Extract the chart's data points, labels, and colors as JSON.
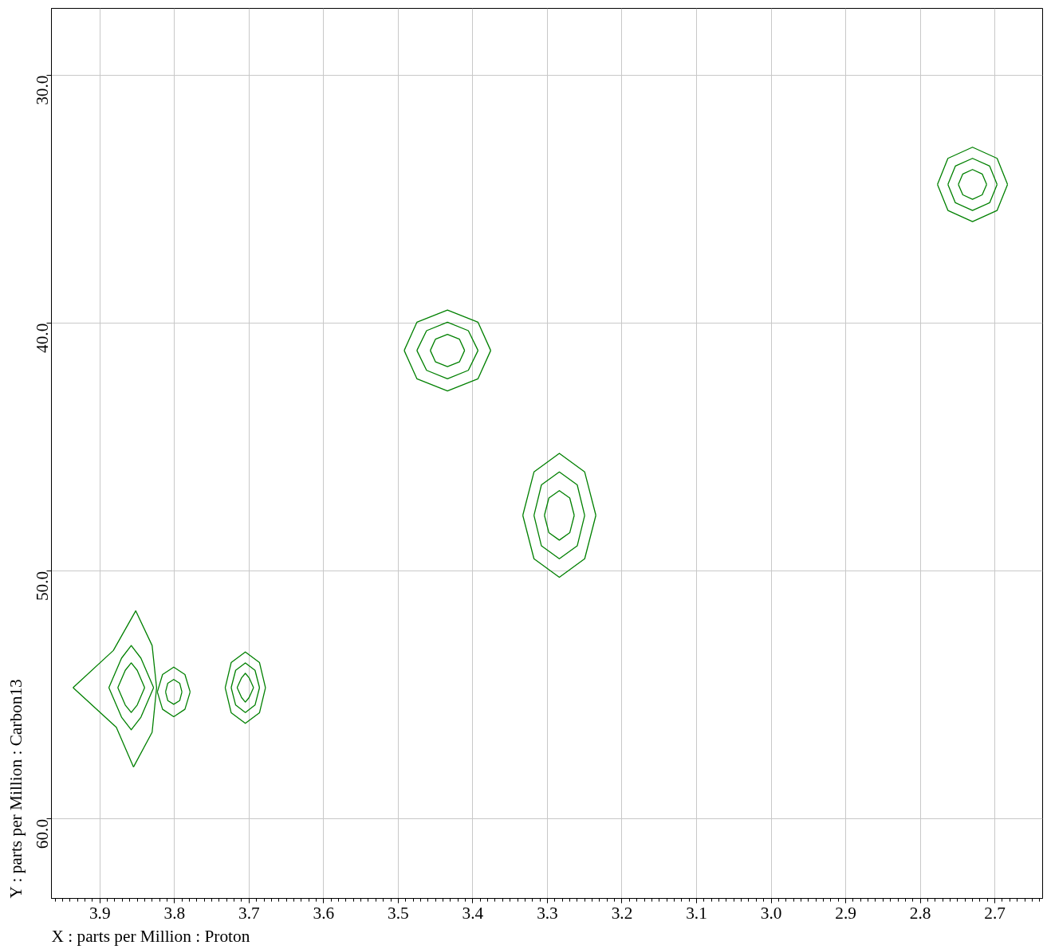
{
  "chart_data": {
    "type": "line",
    "xlabel": "X : parts per Million : Proton",
    "ylabel": "Y : parts per Million : Carbon13",
    "xlim": [
      3.965,
      2.636
    ],
    "ylim": [
      63.2,
      27.3
    ],
    "xticks": [
      {
        "value": 3.9,
        "label": "3.9"
      },
      {
        "value": 3.8,
        "label": "3.8"
      },
      {
        "value": 3.7,
        "label": "3.7"
      },
      {
        "value": 3.6,
        "label": "3.6"
      },
      {
        "value": 3.5,
        "label": "3.5"
      },
      {
        "value": 3.4,
        "label": "3.4"
      },
      {
        "value": 3.3,
        "label": "3.3"
      },
      {
        "value": 3.2,
        "label": "3.2"
      },
      {
        "value": 3.1,
        "label": "3.1"
      },
      {
        "value": 3.0,
        "label": "3.0"
      },
      {
        "value": 2.9,
        "label": "2.9"
      },
      {
        "value": 2.8,
        "label": "2.8"
      },
      {
        "value": 2.7,
        "label": "2.7"
      }
    ],
    "yticks": [
      {
        "value": 30,
        "label": "30.0"
      },
      {
        "value": 40,
        "label": "40.0"
      },
      {
        "value": 50,
        "label": "50.0"
      },
      {
        "value": 60,
        "label": "60.0"
      }
    ],
    "grid": true,
    "marker": "none",
    "line_style": "solid",
    "series": [
      {
        "color": "#008000",
        "x": [
          2.777,
          2.763,
          2.73,
          2.697,
          2.683
        ],
        "values": [
          34.4,
          35.45,
          35.9,
          35.45,
          34.4
        ]
      },
      {
        "color": "#008000",
        "x": [
          2.683,
          2.697,
          2.73,
          2.763,
          2.777
        ],
        "values": [
          34.4,
          33.35,
          32.9,
          33.35,
          34.4
        ]
      },
      {
        "color": "#008000",
        "x": [
          2.763,
          2.753,
          2.73,
          2.707,
          2.697
        ],
        "values": [
          34.4,
          35.14,
          35.45,
          35.14,
          34.4
        ]
      },
      {
        "color": "#008000",
        "x": [
          2.697,
          2.707,
          2.73,
          2.753,
          2.763
        ],
        "values": [
          34.4,
          33.66,
          33.35,
          33.66,
          34.4
        ]
      },
      {
        "color": "#008000",
        "x": [
          2.749,
          2.743,
          2.73,
          2.717,
          2.711
        ],
        "values": [
          34.4,
          34.82,
          35.0,
          34.82,
          34.4
        ]
      },
      {
        "color": "#008000",
        "x": [
          2.711,
          2.717,
          2.73,
          2.743,
          2.749
        ],
        "values": [
          34.4,
          33.98,
          33.8,
          33.98,
          34.4
        ]
      },
      {
        "color": "#008000",
        "x": [
          3.492,
          3.475,
          3.434,
          3.393,
          3.376
        ],
        "values": [
          41.1,
          42.24,
          42.73,
          42.24,
          41.1
        ]
      },
      {
        "color": "#008000",
        "x": [
          3.376,
          3.393,
          3.434,
          3.475,
          3.492
        ],
        "values": [
          41.1,
          39.96,
          39.47,
          39.96,
          41.1
        ]
      },
      {
        "color": "#008000",
        "x": [
          3.475,
          3.462,
          3.434,
          3.406,
          3.393
        ],
        "values": [
          41.1,
          41.9,
          42.24,
          41.9,
          41.1
        ]
      },
      {
        "color": "#008000",
        "x": [
          3.393,
          3.406,
          3.434,
          3.462,
          3.475
        ],
        "values": [
          41.1,
          40.3,
          39.96,
          40.3,
          41.1
        ]
      },
      {
        "color": "#008000",
        "x": [
          3.457,
          3.45,
          3.434,
          3.418,
          3.411
        ],
        "values": [
          41.1,
          41.56,
          41.75,
          41.56,
          41.1
        ]
      },
      {
        "color": "#008000",
        "x": [
          3.411,
          3.418,
          3.434,
          3.45,
          3.457
        ],
        "values": [
          41.1,
          40.64,
          40.45,
          40.64,
          41.1
        ]
      },
      {
        "color": "#008000",
        "x": [
          3.333,
          3.318,
          3.284,
          3.25,
          3.235
        ],
        "values": [
          47.75,
          49.5,
          50.25,
          49.5,
          47.75
        ]
      },
      {
        "color": "#008000",
        "x": [
          3.235,
          3.25,
          3.284,
          3.318,
          3.333
        ],
        "values": [
          47.75,
          46.0,
          45.25,
          46.0,
          47.75
        ]
      },
      {
        "color": "#008000",
        "x": [
          3.318,
          3.308,
          3.284,
          3.26,
          3.25
        ],
        "values": [
          47.75,
          48.98,
          49.5,
          48.98,
          47.75
        ]
      },
      {
        "color": "#008000",
        "x": [
          3.25,
          3.26,
          3.284,
          3.308,
          3.318
        ],
        "values": [
          47.75,
          46.52,
          46.0,
          46.52,
          47.75
        ]
      },
      {
        "color": "#008000",
        "x": [
          3.304,
          3.298,
          3.284,
          3.27,
          3.264
        ],
        "values": [
          47.75,
          48.45,
          48.75,
          48.45,
          47.75
        ]
      },
      {
        "color": "#008000",
        "x": [
          3.264,
          3.27,
          3.284,
          3.298,
          3.304
        ],
        "values": [
          47.75,
          47.05,
          46.75,
          47.05,
          47.75
        ]
      },
      {
        "color": "#008000",
        "x": [
          3.855,
          3.83,
          3.824,
          3.83,
          3.852,
          3.882,
          3.936
        ],
        "values": [
          57.9,
          56.5,
          54.7,
          53.0,
          51.6,
          53.2,
          54.7
        ]
      },
      {
        "color": "#008000",
        "x": [
          3.936,
          3.878,
          3.855
        ],
        "values": [
          54.7,
          56.3,
          57.9
        ]
      },
      {
        "color": "#008000",
        "x": [
          3.828,
          3.845,
          3.858,
          3.871,
          3.888
        ],
        "values": [
          54.7,
          55.89,
          56.4,
          55.89,
          54.7
        ]
      },
      {
        "color": "#008000",
        "x": [
          3.888,
          3.871,
          3.858,
          3.845,
          3.828
        ],
        "values": [
          54.7,
          53.51,
          53.0,
          53.51,
          54.7
        ]
      },
      {
        "color": "#008000",
        "x": [
          3.84,
          3.85,
          3.858,
          3.866,
          3.876
        ],
        "values": [
          54.7,
          55.4,
          55.7,
          55.4,
          54.7
        ]
      },
      {
        "color": "#008000",
        "x": [
          3.876,
          3.866,
          3.858,
          3.85,
          3.84
        ],
        "values": [
          54.7,
          54.0,
          53.7,
          54.0,
          54.7
        ]
      },
      {
        "color": "#008000",
        "x": [
          3.779,
          3.786,
          3.801,
          3.816,
          3.823
        ],
        "values": [
          54.87,
          55.57,
          55.87,
          55.57,
          54.87
        ]
      },
      {
        "color": "#008000",
        "x": [
          3.823,
          3.816,
          3.801,
          3.786,
          3.779
        ],
        "values": [
          54.87,
          54.17,
          53.87,
          54.17,
          54.87
        ]
      },
      {
        "color": "#008000",
        "x": [
          3.79,
          3.793,
          3.801,
          3.809,
          3.812
        ],
        "values": [
          54.87,
          55.22,
          55.37,
          55.22,
          54.87
        ]
      },
      {
        "color": "#008000",
        "x": [
          3.812,
          3.809,
          3.801,
          3.793,
          3.79
        ],
        "values": [
          54.87,
          54.52,
          54.37,
          54.52,
          54.87
        ]
      },
      {
        "color": "#008000",
        "x": [
          3.678,
          3.686,
          3.705,
          3.724,
          3.732
        ],
        "values": [
          54.7,
          55.71,
          56.14,
          55.71,
          54.7
        ]
      },
      {
        "color": "#008000",
        "x": [
          3.732,
          3.724,
          3.705,
          3.686,
          3.678
        ],
        "values": [
          54.7,
          53.69,
          53.26,
          53.69,
          54.7
        ]
      },
      {
        "color": "#008000",
        "x": [
          3.686,
          3.692,
          3.705,
          3.718,
          3.724
        ],
        "values": [
          54.7,
          55.4,
          55.7,
          55.4,
          54.7
        ]
      },
      {
        "color": "#008000",
        "x": [
          3.724,
          3.718,
          3.705,
          3.692,
          3.686
        ],
        "values": [
          54.7,
          54.0,
          53.7,
          54.0,
          54.7
        ]
      },
      {
        "color": "#008000",
        "x": [
          3.694,
          3.7,
          3.705,
          3.71,
          3.716
        ],
        "values": [
          54.7,
          55.1,
          55.28,
          55.1,
          54.7
        ]
      },
      {
        "color": "#008000",
        "x": [
          3.716,
          3.71,
          3.705,
          3.7,
          3.694
        ],
        "values": [
          54.7,
          54.3,
          54.12,
          54.3,
          54.7
        ]
      }
    ]
  }
}
